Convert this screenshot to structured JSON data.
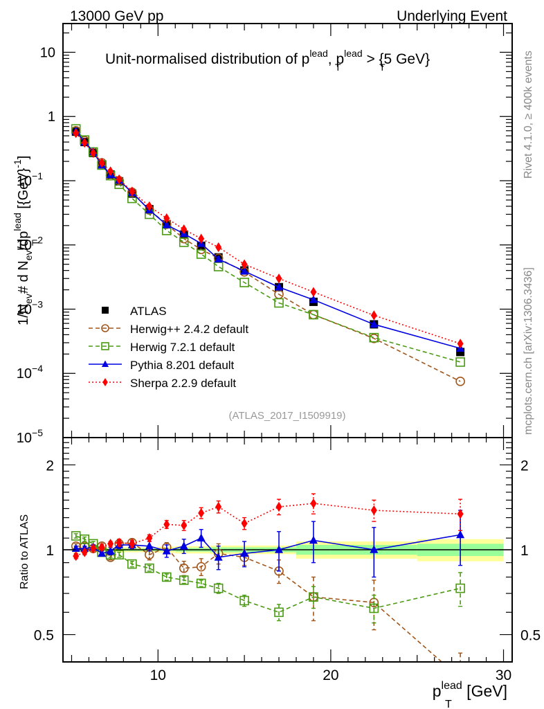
{
  "header": {
    "left": "13000 GeV pp",
    "right": "Underlying Event"
  },
  "side_labels": {
    "rivet": "Rivet 4.1.0, ≥ 400k events",
    "mcplots": "mcplots.cern.ch [arXiv:1306.3436]"
  },
  "chart_data": [
    {
      "type": "line",
      "title": "Unit-normalised distribution of p_T^lead, p_T^lead > {5 GeV}",
      "title_main": "Unit-normalised distribution of p",
      "title_sep": ", p",
      "title_tail": " > {5 GeV}",
      "title_sup": "lead",
      "title_sub": "T",
      "ylabel": "1/N_ev # d N_ev/dp_T^lead [{GeV}^-1]",
      "yscale": "log",
      "ylim": [
        1e-05,
        28
      ],
      "xlim": [
        4.5,
        30.5
      ],
      "yticks": [
        {
          "v": 10,
          "label": "10"
        },
        {
          "v": 1,
          "label": "1"
        },
        {
          "v": 0.1,
          "label": "10",
          "exp": "−1"
        },
        {
          "v": 0.01,
          "label": "10",
          "exp": "−2"
        },
        {
          "v": 0.001,
          "label": "10",
          "exp": "−3"
        },
        {
          "v": 0.0001,
          "label": "10",
          "exp": "−4"
        },
        {
          "v": 1e-05,
          "label": "10",
          "exp": "−5"
        }
      ],
      "watermark": "(ATLAS_2017_I1509919)",
      "x": [
        5.25,
        5.75,
        6.25,
        6.75,
        7.25,
        7.75,
        8.5,
        9.5,
        10.5,
        11.5,
        12.5,
        13.5,
        15,
        17,
        19,
        22.5,
        27.5
      ],
      "series": [
        {
          "name": "ATLAS",
          "marker": "square-filled",
          "color": "#000000",
          "line": "none",
          "values": [
            0.58,
            0.4,
            0.27,
            0.18,
            0.125,
            0.098,
            0.063,
            0.036,
            0.021,
            0.0145,
            0.0097,
            0.0064,
            0.004,
            0.0022,
            0.0013,
            0.00058,
            0.000215
          ]
        },
        {
          "name": "Herwig++ 2.4.2 default",
          "marker": "circle-open",
          "color": "#a0561b",
          "line": "dashed",
          "values": [
            0.6,
            0.42,
            0.28,
            0.19,
            0.12,
            0.1,
            0.066,
            0.035,
            0.021,
            0.0125,
            0.0085,
            0.0062,
            0.0038,
            0.0017,
            0.00082,
            0.00035,
            7.5e-05
          ]
        },
        {
          "name": "Herwig 7.2.1 default",
          "marker": "square-open",
          "color": "#4a9a12",
          "line": "dashed",
          "values": [
            0.64,
            0.43,
            0.28,
            0.175,
            0.12,
            0.088,
            0.053,
            0.03,
            0.0168,
            0.011,
            0.0072,
            0.0046,
            0.0026,
            0.00125,
            0.00082,
            0.00036,
            0.00015
          ]
        },
        {
          "name": "Pythia 8.201 default",
          "marker": "triangle-filled",
          "color": "#0000e0",
          "line": "solid",
          "values": [
            0.59,
            0.4,
            0.28,
            0.175,
            0.124,
            0.102,
            0.065,
            0.035,
            0.0205,
            0.015,
            0.0105,
            0.006,
            0.0039,
            0.0022,
            0.0014,
            0.00058,
            0.000245
          ]
        },
        {
          "name": "Sherpa 2.2.9 default",
          "marker": "diamond-filled",
          "color": "#ff0000",
          "line": "dotted",
          "values": [
            0.55,
            0.39,
            0.27,
            0.19,
            0.14,
            0.105,
            0.068,
            0.04,
            0.026,
            0.0175,
            0.0125,
            0.0092,
            0.005,
            0.003,
            0.00185,
            0.0008,
            0.00029
          ]
        }
      ],
      "legend": {
        "placement": "left-middle",
        "entries": [
          "ATLAS",
          "Herwig++ 2.4.2 default",
          "Herwig 7.2.1 default",
          "Pythia 8.201 default",
          "Sherpa 2.2.9 default"
        ]
      }
    },
    {
      "type": "line",
      "title": "",
      "ylabel": "Ratio to ATLAS",
      "xlabel": "p_T^lead [GeV]",
      "xlabel_main": "p",
      "xlabel_sup": "lead",
      "xlabel_sub": "T",
      "xlabel_unit": " [GeV]",
      "yscale": "log",
      "ylim": [
        0.4,
        2.5
      ],
      "xlim": [
        4.5,
        30.5
      ],
      "yticks": [
        {
          "v": 0.5,
          "label": "0.5"
        },
        {
          "v": 1,
          "label": "1"
        },
        {
          "v": 2,
          "label": "2"
        }
      ],
      "xticks": [
        {
          "v": 10,
          "label": "10"
        },
        {
          "v": 20,
          "label": "20"
        },
        {
          "v": 30,
          "label": "30"
        }
      ],
      "x": [
        5.25,
        5.75,
        6.25,
        6.75,
        7.25,
        7.75,
        8.5,
        9.5,
        10.5,
        11.5,
        12.5,
        13.5,
        15,
        17,
        19,
        22.5,
        27.5
      ],
      "uncertainty_bands": {
        "edges": [
          5,
          5.5,
          6,
          6.5,
          7,
          7.5,
          8,
          9,
          10,
          11,
          12,
          13,
          14,
          16,
          18,
          20,
          25,
          30
        ],
        "inner_half_width": [
          0.01,
          0.01,
          0.01,
          0.01,
          0.01,
          0.01,
          0.01,
          0.01,
          0.01,
          0.015,
          0.015,
          0.02,
          0.02,
          0.02,
          0.04,
          0.04,
          0.05
        ],
        "outer_half_width": [
          0.02,
          0.02,
          0.02,
          0.02,
          0.02,
          0.02,
          0.02,
          0.02,
          0.025,
          0.03,
          0.03,
          0.035,
          0.035,
          0.035,
          0.07,
          0.07,
          0.09
        ],
        "inner_color": "#99ff99",
        "outer_color": "#ffff99"
      },
      "series": [
        {
          "name": "Herwig++ 2.4.2 default",
          "marker": "circle-open",
          "color": "#a0561b",
          "line": "dashed",
          "values": [
            1.03,
            1.03,
            1.01,
            1.03,
            0.94,
            1.05,
            1.06,
            0.96,
            1.02,
            0.86,
            0.87,
            0.97,
            0.94,
            0.84,
            0.68,
            0.65,
            0.35
          ],
          "errors": [
            0.02,
            0.02,
            0.02,
            0.02,
            0.02,
            0.03,
            0.03,
            0.04,
            0.04,
            0.05,
            0.06,
            0.08,
            0.06,
            0.08,
            0.12,
            0.13,
            0.08
          ]
        },
        {
          "name": "Herwig 7.2.1 default",
          "marker": "square-open",
          "color": "#4a9a12",
          "line": "dashed",
          "values": [
            1.12,
            1.09,
            1.05,
            0.98,
            0.96,
            0.96,
            0.89,
            0.86,
            0.8,
            0.78,
            0.76,
            0.73,
            0.66,
            0.6,
            0.68,
            0.62,
            0.73
          ],
          "errors": [
            0.02,
            0.02,
            0.02,
            0.02,
            0.02,
            0.02,
            0.02,
            0.02,
            0.02,
            0.02,
            0.02,
            0.03,
            0.03,
            0.04,
            0.06,
            0.07,
            0.1
          ]
        },
        {
          "name": "Pythia 8.201 default",
          "marker": "triangle-filled",
          "color": "#0000e0",
          "line": "solid",
          "values": [
            1.01,
            1.01,
            1.02,
            0.97,
            0.99,
            1.04,
            1.04,
            1.03,
            0.99,
            1.03,
            1.1,
            0.94,
            0.97,
            1.0,
            1.08,
            1.0,
            1.13
          ],
          "errors": [
            0.02,
            0.02,
            0.02,
            0.02,
            0.03,
            0.03,
            0.03,
            0.04,
            0.05,
            0.06,
            0.08,
            0.09,
            0.1,
            0.16,
            0.18,
            0.2,
            0.25
          ]
        },
        {
          "name": "Sherpa 2.2.9 default",
          "marker": "diamond-filled",
          "color": "#ff0000",
          "line": "dotted",
          "values": [
            0.95,
            0.98,
            1.01,
            1.02,
            1.05,
            1.06,
            1.05,
            1.1,
            1.23,
            1.22,
            1.35,
            1.42,
            1.24,
            1.42,
            1.46,
            1.38,
            1.34
          ],
          "errors": [
            0.02,
            0.02,
            0.02,
            0.02,
            0.02,
            0.03,
            0.03,
            0.03,
            0.04,
            0.05,
            0.06,
            0.07,
            0.06,
            0.09,
            0.12,
            0.12,
            0.17
          ]
        }
      ]
    }
  ]
}
